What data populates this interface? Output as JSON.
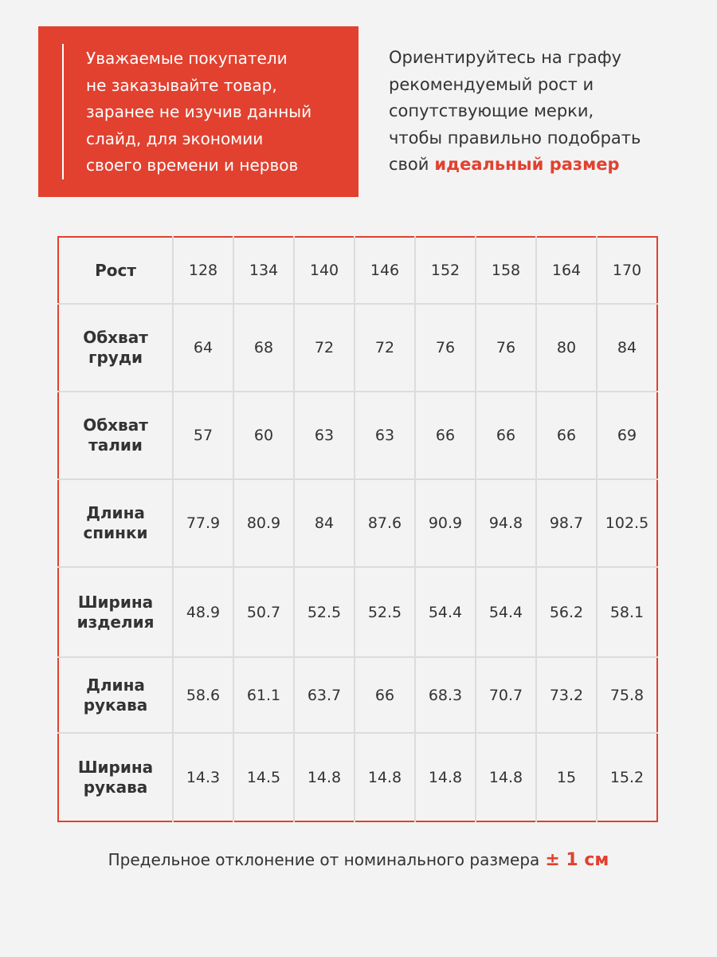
{
  "header": {
    "notice": {
      "lines": [
        "Уважаемые покупатели",
        "не заказывайте товар,",
        "заранее не изучив данный",
        "слайд, для экономии",
        "своего времени и нервов"
      ]
    },
    "advice": {
      "lines": [
        "Ориентируйтесь на графу",
        "рекомендуемый рост и",
        "сопутствующие мерки,",
        "чтобы правильно подобрать"
      ],
      "last_prefix": "свой",
      "highlight": "идеальный размер"
    }
  },
  "table": {
    "rows": [
      {
        "label": [
          "Рост"
        ],
        "values": [
          128,
          134,
          140,
          146,
          152,
          158,
          164,
          170
        ]
      },
      {
        "label": [
          "Обхват",
          "груди"
        ],
        "values": [
          64,
          68,
          72,
          72,
          76,
          76,
          80,
          84
        ]
      },
      {
        "label": [
          "Обхват",
          "талии"
        ],
        "values": [
          57,
          60,
          63,
          63,
          66,
          66,
          66,
          69
        ]
      },
      {
        "label": [
          "Длина",
          "спинки"
        ],
        "values": [
          77.9,
          80.9,
          84,
          87.6,
          90.9,
          94.8,
          98.7,
          102.5
        ]
      },
      {
        "label": [
          "Ширина",
          "изделия"
        ],
        "values": [
          48.9,
          50.7,
          52.5,
          52.5,
          54.4,
          54.4,
          56.2,
          58.1
        ]
      },
      {
        "label": [
          "Длина",
          "рукава"
        ],
        "values": [
          58.6,
          61.1,
          63.7,
          66,
          68.3,
          70.7,
          73.2,
          75.8
        ]
      },
      {
        "label": [
          "Ширина",
          "рукава"
        ],
        "values": [
          14.3,
          14.5,
          14.8,
          14.8,
          14.8,
          14.8,
          15,
          15.2
        ]
      }
    ]
  },
  "footer": {
    "text": "Предельное отклонение от номинального размера",
    "highlight": "± 1 см"
  }
}
